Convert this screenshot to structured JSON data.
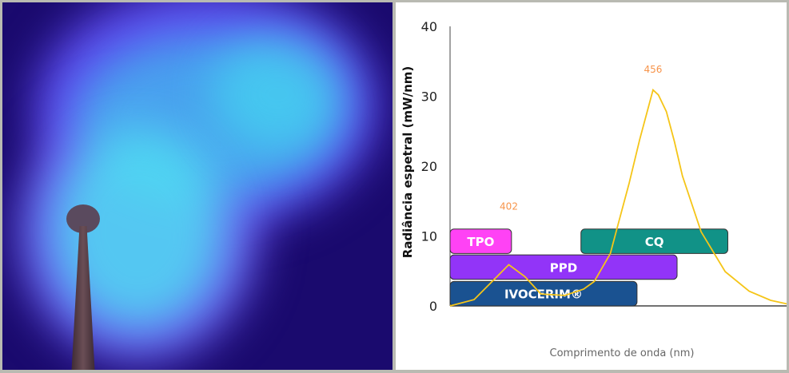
{
  "photo": {
    "description_icon": "light-beam-photo"
  },
  "chart_data": {
    "type": "line",
    "xlabel": "Comprimento de onda (nm)",
    "ylabel": "Radiância espetral (mW/nm)",
    "ylim": [
      0,
      40
    ],
    "yticks": [
      "0",
      "10",
      "20",
      "30",
      "40"
    ],
    "xlim": [
      380,
      506
    ],
    "grid": false,
    "line_color": "#f5c518",
    "series": [
      {
        "x": [
          380,
          389,
          395,
          402,
          408,
          414,
          423,
          430,
          434,
          440,
          443,
          447,
          451,
          456,
          458,
          461,
          464,
          467,
          474,
          483,
          492,
          500,
          506
        ],
        "y": [
          0,
          0.9,
          3.2,
          5.9,
          4.2,
          1.7,
          1.5,
          2.4,
          3.5,
          7.5,
          11.8,
          17.5,
          23.8,
          30.9,
          30.2,
          27.8,
          23.5,
          18.6,
          10.6,
          4.9,
          2.1,
          0.8,
          0.3
        ]
      }
    ],
    "annotations": [
      {
        "label": "402",
        "x": 402,
        "y": 13.8,
        "color": "#f7944a"
      },
      {
        "label": "456",
        "x": 456,
        "y": 33.4,
        "color": "#f7944a"
      }
    ],
    "bands": [
      {
        "label": "TPO",
        "x0": 380,
        "x1": 403,
        "y0": 7.5,
        "y1": 11,
        "color": "#ff42f5"
      },
      {
        "label": "CQ",
        "x0": 429,
        "x1": 484,
        "y0": 7.5,
        "y1": 11,
        "color": "#119287"
      },
      {
        "label": "PPD",
        "x0": 380,
        "x1": 465,
        "y0": 3.8,
        "y1": 7.3,
        "color": "#9234f8"
      },
      {
        "label": "IVOCERIM®",
        "x0": 380,
        "x1": 450,
        "y0": 0,
        "y1": 3.5,
        "color": "#1a5291"
      }
    ]
  }
}
